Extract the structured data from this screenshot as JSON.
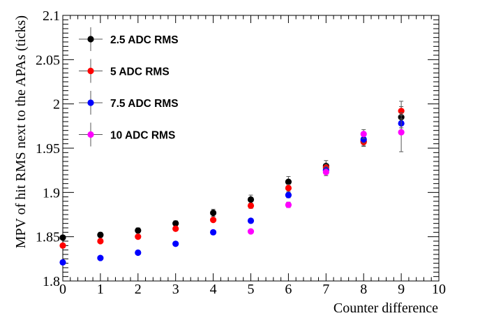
{
  "chart_data": {
    "type": "scatter",
    "title": "",
    "xlabel": "Counter difference",
    "ylabel": "MPV of hit RMS next to the APAs (ticks)",
    "xlim": [
      0,
      10
    ],
    "ylim": [
      1.8,
      2.1
    ],
    "xticks": [
      "0",
      "1",
      "2",
      "3",
      "4",
      "5",
      "6",
      "7",
      "8",
      "9",
      "10"
    ],
    "yticks": [
      "1.8",
      "1.85",
      "1.9",
      "1.95",
      "2",
      "2.05",
      "2.1"
    ],
    "grid": false,
    "legend_position": "top-left",
    "series": [
      {
        "name": "2.5 ADC RMS",
        "color": "#000000",
        "points": [
          {
            "x": 0,
            "y": 1.849,
            "err": 0.002
          },
          {
            "x": 1,
            "y": 1.852,
            "err": 0.003
          },
          {
            "x": 2,
            "y": 1.857,
            "err": 0.003
          },
          {
            "x": 3,
            "y": 1.865,
            "err": 0.003
          },
          {
            "x": 4,
            "y": 1.877,
            "err": 0.004
          },
          {
            "x": 5,
            "y": 1.892,
            "err": 0.005
          },
          {
            "x": 6,
            "y": 1.912,
            "err": 0.006
          },
          {
            "x": 7,
            "y": 1.93,
            "err": 0.006
          },
          {
            "x": 8,
            "y": 1.958,
            "err": 0.006
          },
          {
            "x": 9,
            "y": 1.985,
            "err": 0.018
          }
        ]
      },
      {
        "name": "5 ADC RMS",
        "color": "#ff0000",
        "points": [
          {
            "x": 0,
            "y": 1.84,
            "err": 0.0
          },
          {
            "x": 1,
            "y": 1.845,
            "err": 0.0
          },
          {
            "x": 2,
            "y": 1.85,
            "err": 0.0
          },
          {
            "x": 3,
            "y": 1.859,
            "err": 0.0
          },
          {
            "x": 4,
            "y": 1.869,
            "err": 0.0
          },
          {
            "x": 5,
            "y": 1.885,
            "err": 0.003
          },
          {
            "x": 6,
            "y": 1.905,
            "err": 0.004
          },
          {
            "x": 7,
            "y": 1.928,
            "err": 0.004
          },
          {
            "x": 8,
            "y": 1.957,
            "err": 0.004
          },
          {
            "x": 9,
            "y": 1.992,
            "err": 0.005
          }
        ]
      },
      {
        "name": "7.5 ADC RMS",
        "color": "#0000ff",
        "points": [
          {
            "x": 0,
            "y": 1.821,
            "err": 0.0
          },
          {
            "x": 1,
            "y": 1.826,
            "err": 0.0
          },
          {
            "x": 2,
            "y": 1.832,
            "err": 0.0
          },
          {
            "x": 3,
            "y": 1.842,
            "err": 0.0
          },
          {
            "x": 4,
            "y": 1.855,
            "err": 0.0
          },
          {
            "x": 5,
            "y": 1.868,
            "err": 0.0
          },
          {
            "x": 6,
            "y": 1.897,
            "err": 0.003
          },
          {
            "x": 7,
            "y": 1.925,
            "err": 0.004
          },
          {
            "x": 8,
            "y": 1.96,
            "err": 0.004
          },
          {
            "x": 9,
            "y": 1.978,
            "err": 0.005
          }
        ]
      },
      {
        "name": "10 ADC RMS",
        "color": "#ff00ff",
        "points": [
          {
            "x": 5,
            "y": 1.856,
            "err": 0.0
          },
          {
            "x": 6,
            "y": 1.886,
            "err": 0.003
          },
          {
            "x": 7,
            "y": 1.923,
            "err": 0.004
          },
          {
            "x": 8,
            "y": 1.966,
            "err": 0.005
          },
          {
            "x": 9,
            "y": 1.968,
            "err": 0.022
          }
        ]
      }
    ]
  }
}
